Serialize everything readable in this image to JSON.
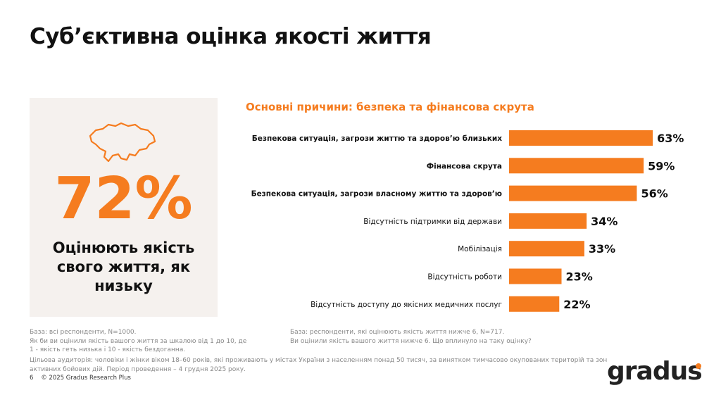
{
  "header": {
    "title": "Суб’єктивна оцінка якості життя"
  },
  "kpi": {
    "icon": "ukraine-map-outline-icon",
    "value": "72%",
    "label": "Оцінюють якість свого життя, як низьку"
  },
  "colors": {
    "accent": "#f57c1f",
    "panel": "#f5f1ee"
  },
  "chart_data": {
    "type": "bar",
    "orientation": "horizontal",
    "title": "Основні причини: безпека та фінансова скрута",
    "categories": [
      "Безпекова ситуація, загрози життю та здоров’ю близьких",
      "Фінансова скрута",
      "Безпекова ситуація, загрози власному життю та здоров’ю",
      "Відсутність підтримки від держави",
      "Мобілізація",
      "Відсутність роботи",
      "Відсутність доступу до якісних медичних послуг"
    ],
    "values": [
      63,
      59,
      56,
      34,
      33,
      23,
      22
    ],
    "data_labels": [
      "63%",
      "59%",
      "56%",
      "34%",
      "33%",
      "23%",
      "22%"
    ],
    "bold_categories": [
      0,
      1,
      2
    ],
    "unit": "%",
    "grid": false,
    "color": "#f57c1f"
  },
  "notes": {
    "left": [
      "База: всі респонденти, N=1000.",
      "Як би ви оцінили якість вашого життя за шкалою від 1 до 10, де",
      "1 - якість геть низька і 10 - якість бездоганна."
    ],
    "right": [
      "База: респонденти, які оцінюють якість життя нижче 6, N=717.",
      "Ви оцінили якість вашого життя нижче 6. Що вплинуло на таку оцінку?"
    ],
    "audience": [
      "Цільова аудиторія: чоловіки і жінки віком 18–60 років, які проживають у містах України з населенням понад 50 тисяч, за винятком тимчасово окупованих територій та зон",
      "активних бойових дій. Період проведення – 4 грудня 2025 року."
    ]
  },
  "footer": {
    "page": "6",
    "copyright": "© 2025 Gradus Research Plus"
  },
  "logo": {
    "text": "gradus"
  }
}
